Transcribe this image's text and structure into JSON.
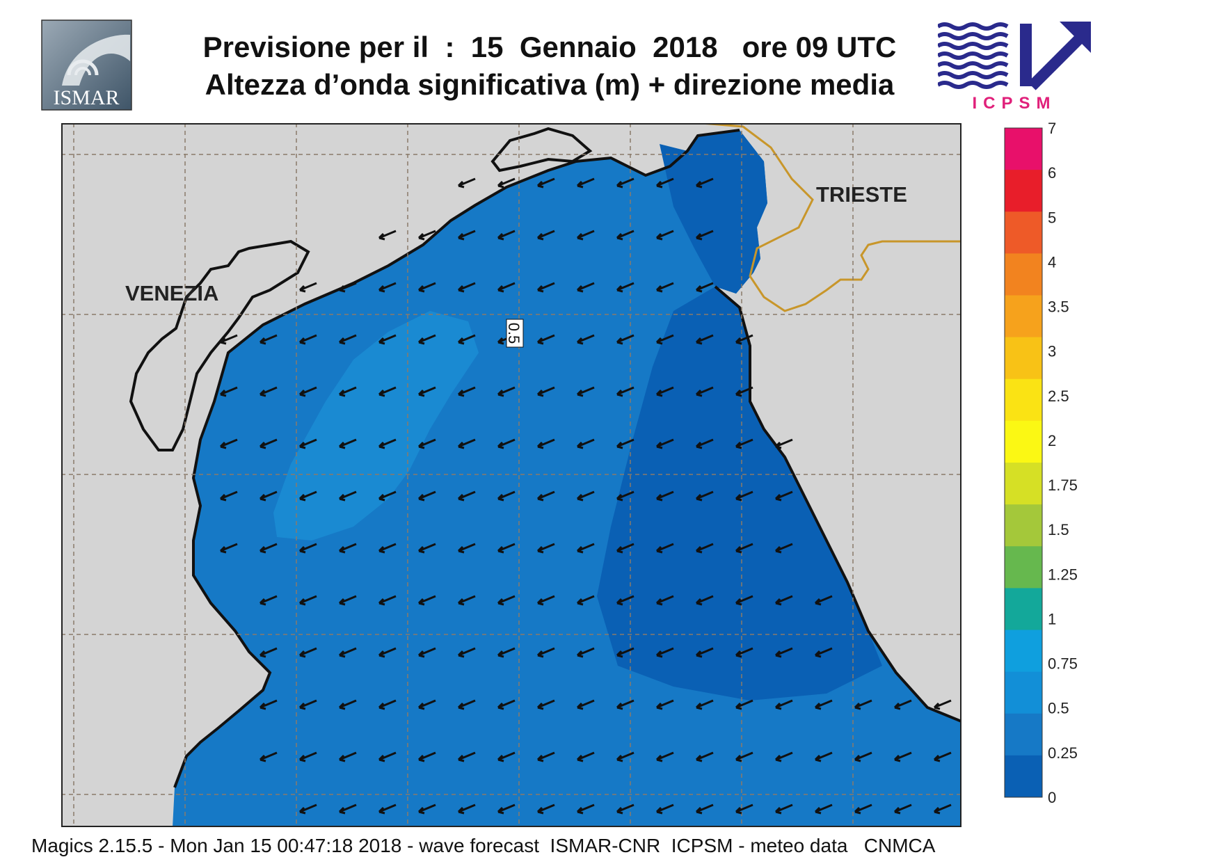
{
  "header": {
    "title_line1": "Previsione per il  :  15  Gennaio  2018   ore 09 UTC",
    "title_line2": "Altezza d’onda significativa (m) + direzione media"
  },
  "logos": {
    "left": "ISMAR",
    "right": "ICPSM"
  },
  "map": {
    "cities": [
      "VENEZIA",
      "TRIESTE"
    ],
    "contour_label": "0.5",
    "colors": {
      "land": "#d4d4d4",
      "sea_0_025": "#0a60b4",
      "sea_025_05": "#1679c6",
      "sea_05_075": "#1a8ad2",
      "coastline": "#111111",
      "border": "#c8962a",
      "grid": "#8a7a6a",
      "arrow": "#111111"
    },
    "wave_direction": "towards south-west"
  },
  "legend": {
    "ticks": [
      "7",
      "6",
      "5",
      "4",
      "3.5",
      "3",
      "2.5",
      "2",
      "1.75",
      "1.5",
      "1.25",
      "1",
      "0.75",
      "0.5",
      "0.25",
      "0"
    ],
    "colors": [
      "#e8106a",
      "#e81e2a",
      "#ee5a28",
      "#f2831f",
      "#f6a21c",
      "#f8c216",
      "#fae314",
      "#fbf814",
      "#d6e025",
      "#a4c83a",
      "#66b84e",
      "#13a89a",
      "#0f9fde",
      "#128fd7",
      "#1679c6",
      "#0a60b4"
    ]
  },
  "footer": {
    "text": "Magics 2.15.5 - Mon Jan 15 00:47:18 2018 - wave forecast  ISMAR-CNR  ICPSM - meteo data   CNMCA"
  }
}
